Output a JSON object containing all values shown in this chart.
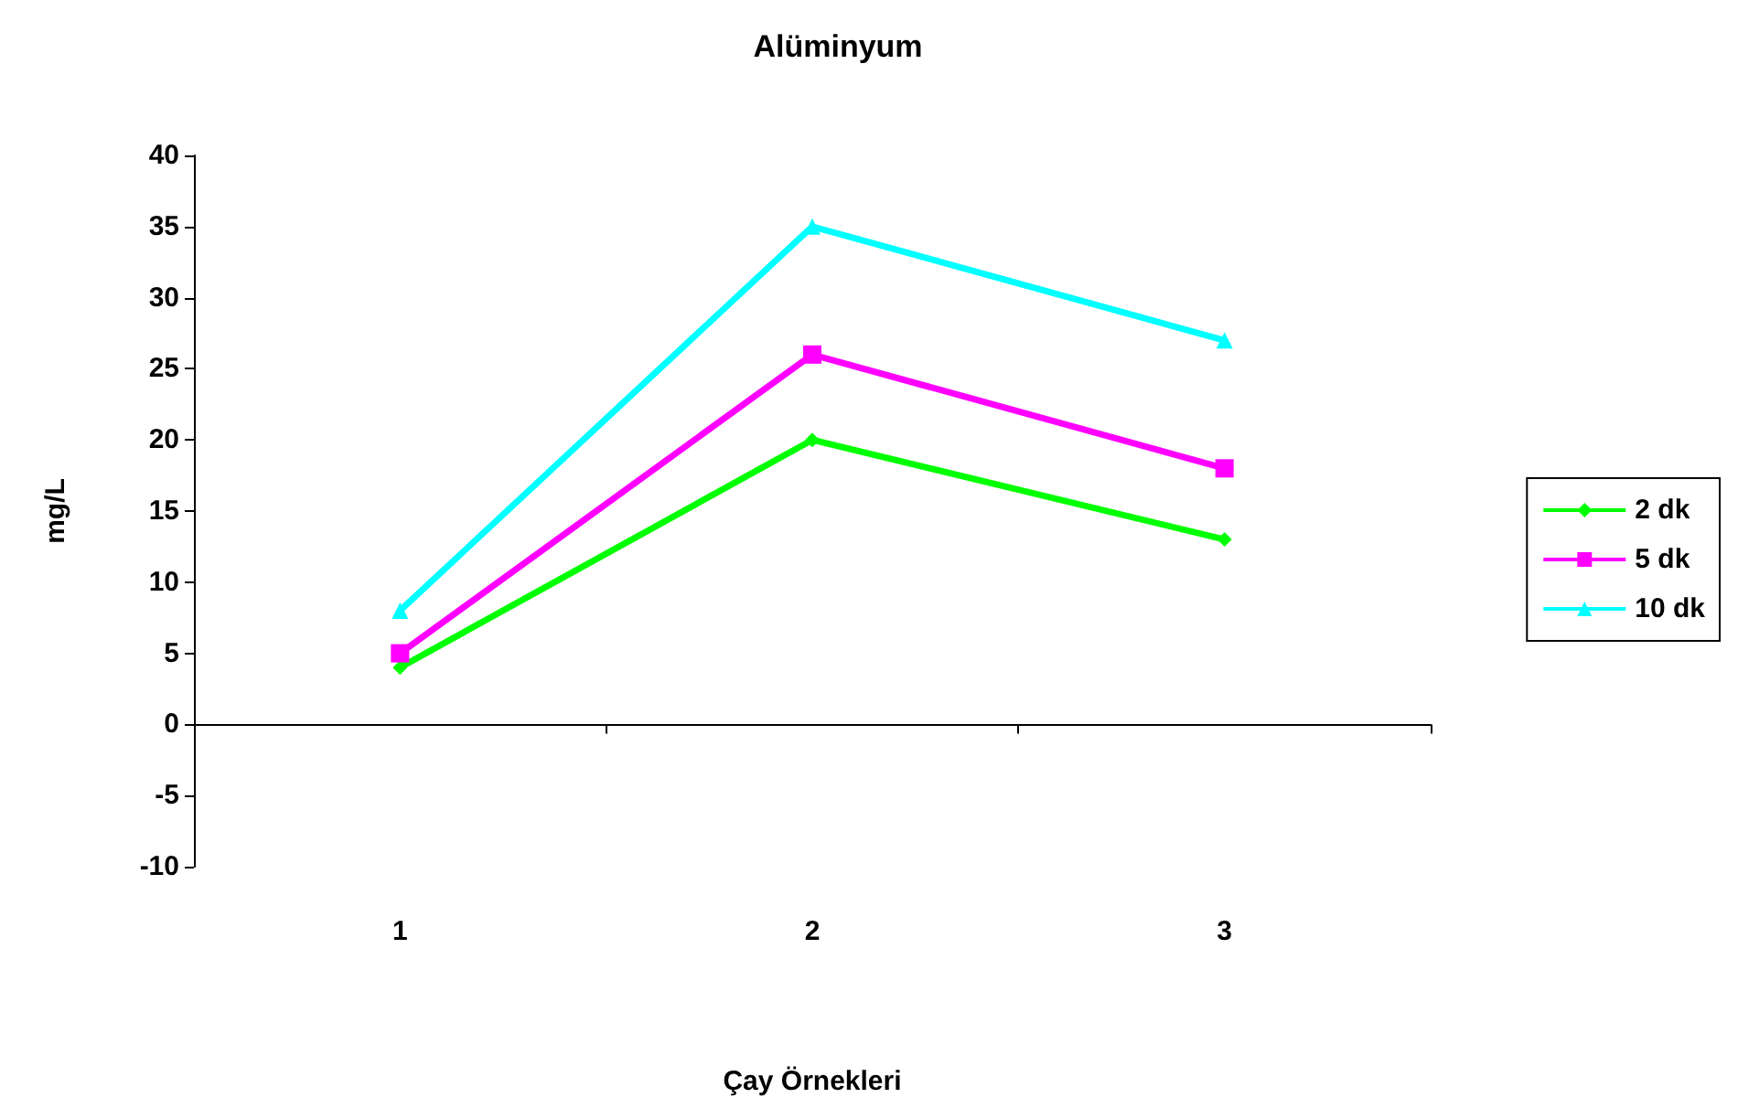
{
  "chart_data": {
    "type": "line",
    "title": "Alüminyum",
    "xlabel": "Çay Örnekleri",
    "ylabel": "mg/L",
    "categories": [
      "1",
      "2",
      "3"
    ],
    "series": [
      {
        "name": "2 dk",
        "color": "#00ff00",
        "marker": "diamond",
        "values": [
          4,
          20,
          13
        ]
      },
      {
        "name": "5 dk",
        "color": "#ff00ff",
        "marker": "square",
        "values": [
          5,
          26,
          18
        ]
      },
      {
        "name": "10 dk",
        "color": "#00ffff",
        "marker": "triangle",
        "values": [
          8,
          35,
          27
        ]
      }
    ],
    "ylim": [
      -10,
      40
    ],
    "yticks": [
      -10,
      -5,
      0,
      5,
      10,
      15,
      20,
      25,
      30,
      35,
      40
    ],
    "legend": "right"
  }
}
